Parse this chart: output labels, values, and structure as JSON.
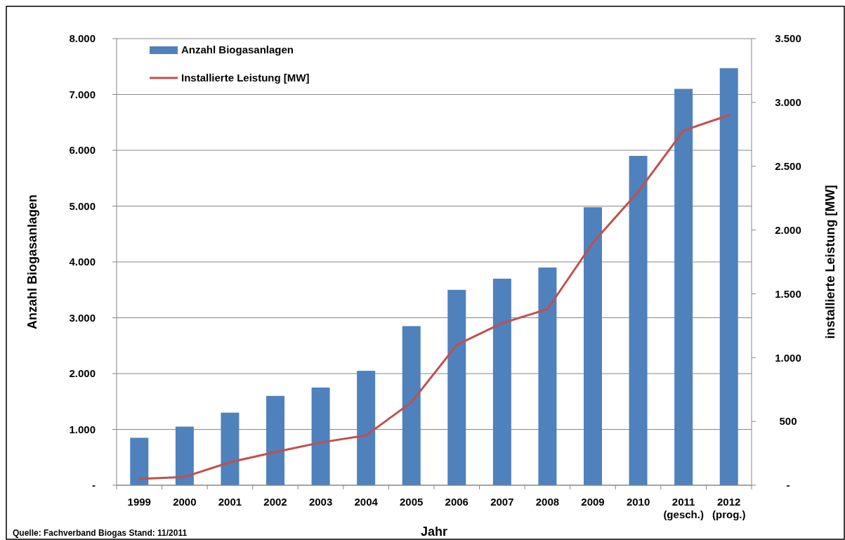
{
  "chart_data": {
    "type": "bar",
    "categories": [
      "1999",
      "2000",
      "2001",
      "2002",
      "2003",
      "2004",
      "2005",
      "2006",
      "2007",
      "2008",
      "2009",
      "2010",
      "2011\n(gesch.)",
      "2012\n(prog.)"
    ],
    "series": [
      {
        "name": "Anzahl Biogasanlagen",
        "color": "#4f81bd",
        "values": [
          850,
          1050,
          1300,
          1600,
          1750,
          2050,
          2850,
          3500,
          3700,
          3900,
          4980,
          5900,
          7100,
          7470
        ]
      },
      {
        "name": "Installierte Leistung [MW]",
        "type": "line",
        "axis": "y2",
        "color": "#c0504d",
        "values": [
          50,
          65,
          180,
          260,
          335,
          390,
          650,
          1100,
          1270,
          1380,
          1900,
          2300,
          2780,
          2900
        ]
      }
    ],
    "xlabel": "Jahr",
    "ylabel": "Anzahl Biogasanlagen",
    "y2label": "installierte Leistung [MW]",
    "ylim": [
      0,
      8000
    ],
    "yticks": [
      {
        "value": 0,
        "label": "-"
      },
      {
        "value": 1000,
        "label": "1.000"
      },
      {
        "value": 2000,
        "label": "2.000"
      },
      {
        "value": 3000,
        "label": "3.000"
      },
      {
        "value": 4000,
        "label": "4.000"
      },
      {
        "value": 5000,
        "label": "5.000"
      },
      {
        "value": 6000,
        "label": "6.000"
      },
      {
        "value": 7000,
        "label": "7.000"
      },
      {
        "value": 8000,
        "label": "8.000"
      }
    ],
    "y2lim": [
      0,
      3500
    ],
    "y2ticks": [
      {
        "value": 0,
        "label": "-"
      },
      500,
      {
        "value": 1000,
        "label": "1.000"
      },
      {
        "value": 1500,
        "label": "1.500"
      },
      {
        "value": 2000,
        "label": "2.000"
      },
      {
        "value": 2500,
        "label": "2.500"
      },
      {
        "value": 3000,
        "label": "3.000"
      },
      {
        "value": 3500,
        "label": "3.500"
      }
    ],
    "grid": "y",
    "legend": "top left",
    "marker": "none",
    "line_style": "solid",
    "annotations": [
      "Quelle: Fachverband Biogas  Stand: 11/2011"
    ]
  }
}
